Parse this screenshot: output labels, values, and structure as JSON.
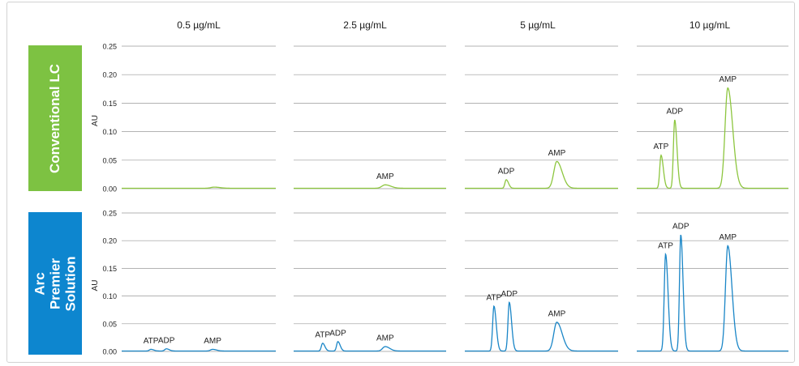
{
  "chart_data": {
    "type": "line",
    "columns": [
      "0.5 µg/mL",
      "2.5 µg/mL",
      "5 µg/mL",
      "10 µg/mL"
    ],
    "ylabel": "AU",
    "ylim": [
      0,
      0.25
    ],
    "yticks": [
      "0.00",
      "0.05",
      "0.10",
      "0.15",
      "0.20",
      "0.25"
    ],
    "grid": true,
    "rows": [
      {
        "name": "Conventional LC",
        "color": "#8dc63f",
        "label_bg": "#7dc242",
        "panels": [
          {
            "column": "0.5 µg/mL",
            "peaks": [
              {
                "name": "AMP",
                "x": 0.6,
                "height": 0.002,
                "width": 0.03,
                "labeled": false
              }
            ]
          },
          {
            "column": "2.5 µg/mL",
            "peaks": [
              {
                "name": "AMP",
                "x": 0.6,
                "height": 0.006,
                "width": 0.03,
                "labeled": true
              }
            ]
          },
          {
            "column": "5 µg/mL",
            "peaks": [
              {
                "name": "ADP",
                "x": 0.27,
                "height": 0.015,
                "width": 0.012,
                "labeled": true
              },
              {
                "name": "AMP",
                "x": 0.6,
                "height": 0.047,
                "width": 0.028,
                "labeled": true
              }
            ]
          },
          {
            "column": "10 µg/mL",
            "peaks": [
              {
                "name": "ATP",
                "x": 0.16,
                "height": 0.058,
                "width": 0.012,
                "labeled": true
              },
              {
                "name": "ADP",
                "x": 0.25,
                "height": 0.12,
                "width": 0.012,
                "labeled": true
              },
              {
                "name": "AMP",
                "x": 0.6,
                "height": 0.176,
                "width": 0.026,
                "labeled": true
              }
            ]
          }
        ]
      },
      {
        "name": "Arc Premier Solution",
        "color": "#1a86c7",
        "label_bg": "#0d86cf",
        "panels": [
          {
            "column": "0.5 µg/mL",
            "peaks": [
              {
                "name": "ATP",
                "x": 0.19,
                "height": 0.003,
                "width": 0.015,
                "labeled": true
              },
              {
                "name": "ADP",
                "x": 0.29,
                "height": 0.004,
                "width": 0.015,
                "labeled": true
              },
              {
                "name": "AMP",
                "x": 0.59,
                "height": 0.003,
                "width": 0.02,
                "labeled": true
              }
            ]
          },
          {
            "column": "2.5 µg/mL",
            "peaks": [
              {
                "name": "ATP",
                "x": 0.19,
                "height": 0.014,
                "width": 0.012,
                "labeled": true
              },
              {
                "name": "ADP",
                "x": 0.29,
                "height": 0.017,
                "width": 0.012,
                "labeled": true
              },
              {
                "name": "AMP",
                "x": 0.6,
                "height": 0.008,
                "width": 0.024,
                "labeled": true
              }
            ]
          },
          {
            "column": "5 µg/mL",
            "peaks": [
              {
                "name": "ATP",
                "x": 0.19,
                "height": 0.081,
                "width": 0.012,
                "labeled": true
              },
              {
                "name": "ADP",
                "x": 0.29,
                "height": 0.088,
                "width": 0.012,
                "labeled": true
              },
              {
                "name": "AMP",
                "x": 0.6,
                "height": 0.052,
                "width": 0.028,
                "labeled": true
              }
            ]
          },
          {
            "column": "10 µg/mL",
            "peaks": [
              {
                "name": "ATP",
                "x": 0.19,
                "height": 0.175,
                "width": 0.013,
                "labeled": true
              },
              {
                "name": "ADP",
                "x": 0.29,
                "height": 0.21,
                "width": 0.012,
                "labeled": true
              },
              {
                "name": "AMP",
                "x": 0.6,
                "height": 0.19,
                "width": 0.022,
                "labeled": true
              }
            ]
          }
        ]
      }
    ]
  }
}
